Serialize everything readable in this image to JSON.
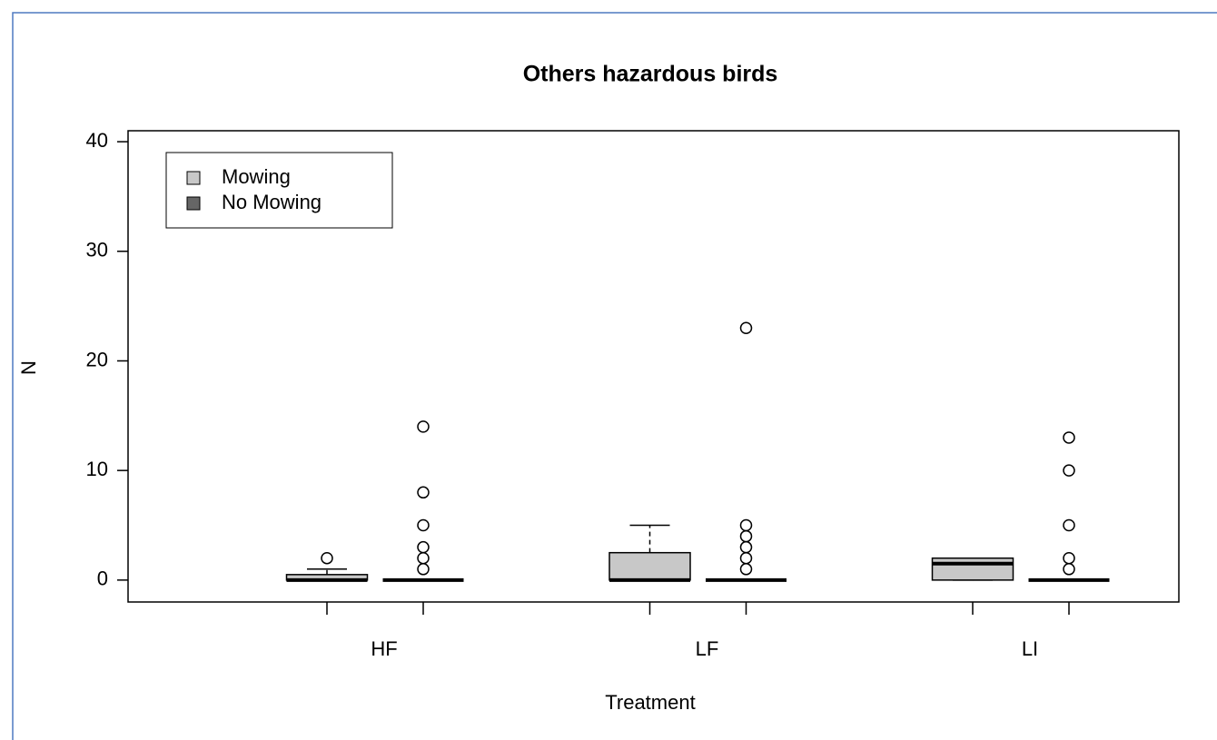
{
  "chart_data": {
    "type": "box",
    "title": "Others hazardous birds",
    "x_label": "Treatment",
    "y_label": "N",
    "categories": [
      "HF",
      "LF",
      "LI"
    ],
    "series": [
      {
        "name": "Mowing",
        "color": "#c8c8c8",
        "min": [
          0,
          0,
          0
        ],
        "q1": [
          0,
          0,
          0
        ],
        "median": [
          0,
          0,
          1.5
        ],
        "q3": [
          0.5,
          2.5,
          2
        ],
        "max": [
          1,
          5,
          2
        ],
        "outliers": [
          [
            2
          ],
          [],
          []
        ]
      },
      {
        "name": "No Mowing",
        "color": "#666666",
        "min": [
          0,
          0,
          0
        ],
        "q1": [
          0,
          0,
          0
        ],
        "median": [
          0,
          0,
          0
        ],
        "q3": [
          0,
          0,
          0
        ],
        "max": [
          0,
          0,
          0
        ],
        "outliers": [
          [
            1,
            2,
            3,
            5,
            8,
            14
          ],
          [
            1,
            2,
            3,
            4,
            5,
            23
          ],
          [
            1,
            2,
            5,
            10,
            13
          ]
        ]
      }
    ],
    "ylim": [
      -2,
      41
    ],
    "yticks": [
      0,
      10,
      20,
      30,
      40
    ],
    "legend": "top-left"
  }
}
